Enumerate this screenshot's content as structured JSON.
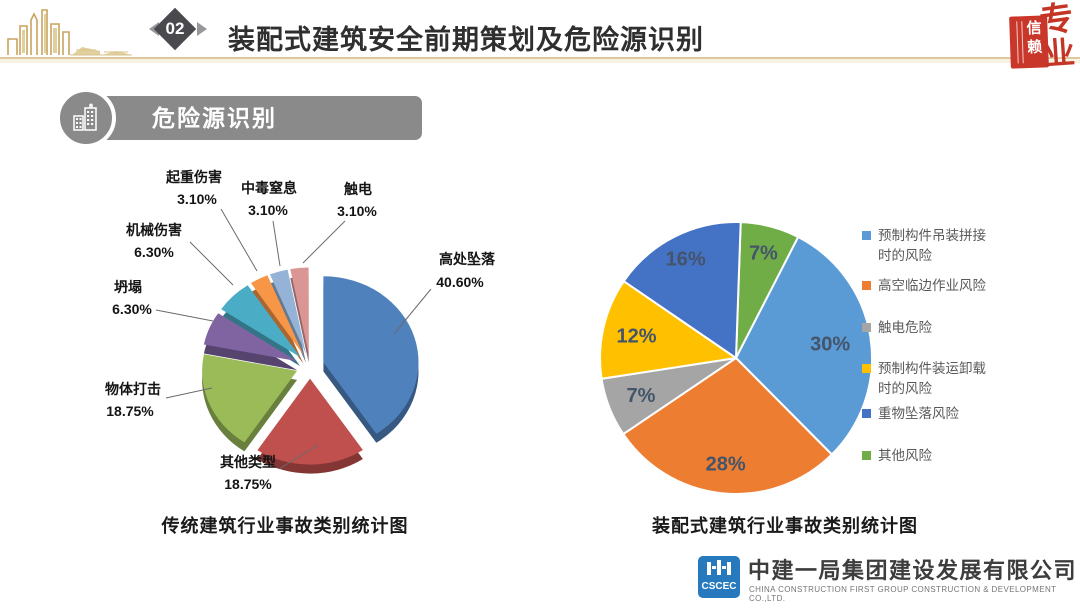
{
  "header": {
    "section_number": "02",
    "title": "装配式建筑安全前期策划及危险源识别"
  },
  "seal": {
    "main_top": "专",
    "main_bottom": "业",
    "box_text": "信赖"
  },
  "section_header": {
    "label": "危险源识别"
  },
  "colors": {
    "header_line": "#DCC99C",
    "section_bar": "#8A8A8A",
    "seal_red": "#C9372A",
    "logo_blue": "#2579BC",
    "skyline_gold": "#C8A35E"
  },
  "chart_data": [
    {
      "type": "pie",
      "style": "exploded-3d",
      "title": "传统建筑行业事故类别统计图",
      "labels": [
        "高处坠落",
        "其他类型",
        "物体打击",
        "坍塌",
        "机械伤害",
        "起重伤害",
        "中毒窒息",
        "触电"
      ],
      "values": [
        40.6,
        18.75,
        18.75,
        6.3,
        6.3,
        3.1,
        3.1,
        3.1
      ],
      "value_labels": [
        "40.60%",
        "18.75%",
        "18.75%",
        "6.30%",
        "6.30%",
        "3.10%",
        "3.10%",
        "3.10%"
      ],
      "colors": [
        "#4F81BD",
        "#C0504D",
        "#9BBB59",
        "#8064A2",
        "#4BACC6",
        "#F79646",
        "#95B3D7",
        "#D99694"
      ],
      "legend_position": "none",
      "label_position": "outside-with-leader-lines"
    },
    {
      "type": "pie",
      "style": "flat",
      "title": "装配式建筑行业事故类别统计图",
      "labels": [
        "预制构件吊装拼接\n时的风险",
        "高空临边作业风险",
        "触电危险",
        "预制构件装运卸载\n时的风险",
        "重物坠落风险",
        "其他风险"
      ],
      "values": [
        30,
        28,
        7,
        12,
        16,
        7
      ],
      "percent_labels": [
        "30%",
        "28%",
        "7%",
        "12%",
        "16%",
        "7%"
      ],
      "colors": [
        "#5B9BD5",
        "#ED7D31",
        "#A5A5A5",
        "#FFC000",
        "#4472C4",
        "#70AD47"
      ],
      "legend_position": "right",
      "label_position": "inside"
    }
  ],
  "captions": {
    "left": "传统建筑行业事故类别统计图",
    "right": "装配式建筑行业事故类别统计图"
  },
  "footer": {
    "logo_text": "CSCEC",
    "company_cn": "中建一局集团建设发展有限公司",
    "company_en": "CHINA CONSTRUCTION FIRST GROUP CONSTRUCTION & DEVELOPMENT CO.,LTD."
  }
}
